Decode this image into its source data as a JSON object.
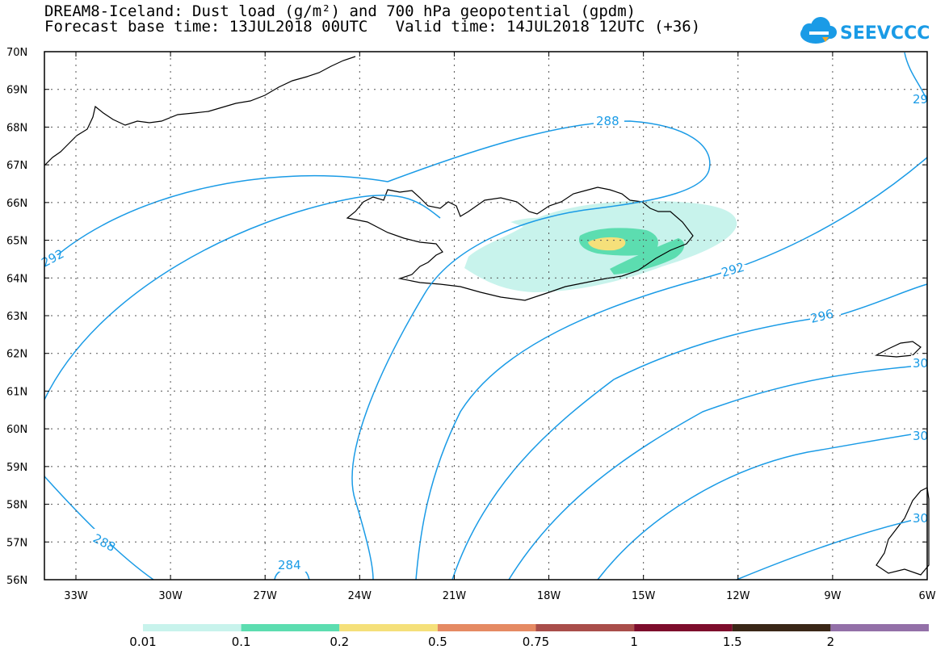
{
  "title_line1": "DREAM8-Iceland: Dust load (g/m²) and 700 hPa geopotential (gpdm)",
  "title_line2": "Forecast base time: 13JUL2018 00UTC   Valid time: 14JUL2018 12UTC (+36)",
  "logo_text": "SEEVCCC",
  "logo_icon": "cloud-icon",
  "lat_labels": [
    "70N",
    "69N",
    "68N",
    "67N",
    "66N",
    "65N",
    "64N",
    "63N",
    "62N",
    "61N",
    "60N",
    "59N",
    "58N",
    "57N",
    "56N"
  ],
  "lon_labels": [
    "33W",
    "30W",
    "27W",
    "24W",
    "21W",
    "18W",
    "15W",
    "12W",
    "9W",
    "6W"
  ],
  "contour_labels": [
    "288",
    "288",
    "292",
    "292",
    "296",
    "284",
    "288",
    "29",
    "30",
    "30",
    "30"
  ],
  "colorbar": {
    "ticks": [
      "0.01",
      "0.1",
      "0.2",
      "0.5",
      "0.75",
      "1",
      "1.5",
      "2"
    ],
    "colors": [
      "#c8f3ec",
      "#5cddb0",
      "#f5e07a",
      "#e58a63",
      "#a94e4a",
      "#7d0d2c",
      "#3a2717",
      "#9370a8"
    ]
  },
  "colors": {
    "contour": "#1a9be6",
    "coast": "#000000",
    "dust_low": "#c8f3ec",
    "dust_mid": "#5cddb0",
    "dust_high": "#f5e07a"
  }
}
